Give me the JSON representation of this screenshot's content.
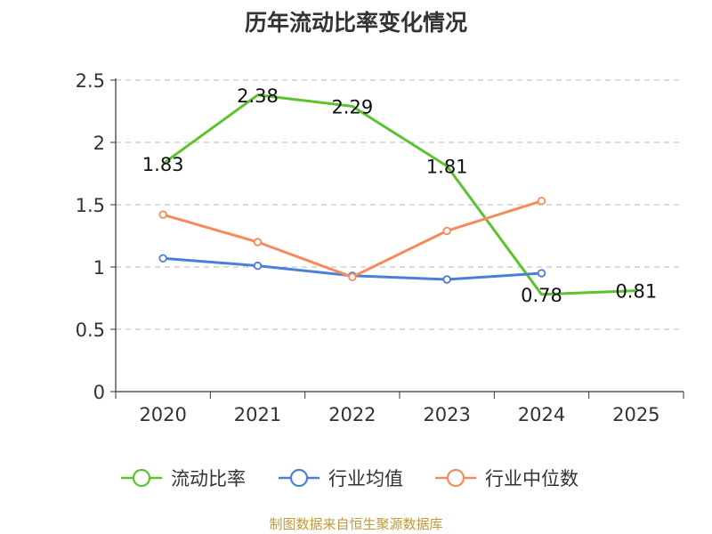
{
  "chart_data": {
    "type": "line",
    "title": "历年流动比率变化情况",
    "categories": [
      "2020",
      "2021",
      "2022",
      "2023",
      "2024",
      "2025"
    ],
    "ylim": [
      0,
      2.5
    ],
    "yticks": [
      0,
      0.5,
      1,
      1.5,
      2,
      2.5
    ],
    "ytick_labels": [
      "0",
      "0.5",
      "1",
      "1.5",
      "2",
      "2.5"
    ],
    "grid": true,
    "legend_position": "bottom",
    "series": [
      {
        "name": "流动比率",
        "color": "#5cc22e",
        "values": [
          1.83,
          2.38,
          2.29,
          1.81,
          0.78,
          0.81
        ],
        "labels": [
          "1.83",
          "2.38",
          "2.29",
          "1.81",
          "0.78",
          "0.81"
        ],
        "show_labels": true,
        "show_markers": false
      },
      {
        "name": "行业均值",
        "color": "#4a7fd9",
        "values": [
          1.07,
          1.01,
          0.93,
          0.9,
          0.95,
          null
        ],
        "show_labels": false,
        "show_markers": true
      },
      {
        "name": "行业中位数",
        "color": "#f78a5a",
        "values": [
          1.42,
          1.2,
          0.92,
          1.29,
          1.53,
          null
        ],
        "show_labels": false,
        "show_markers": true
      }
    ]
  },
  "footer": {
    "source": "制图数据来自恒生聚源数据库"
  }
}
